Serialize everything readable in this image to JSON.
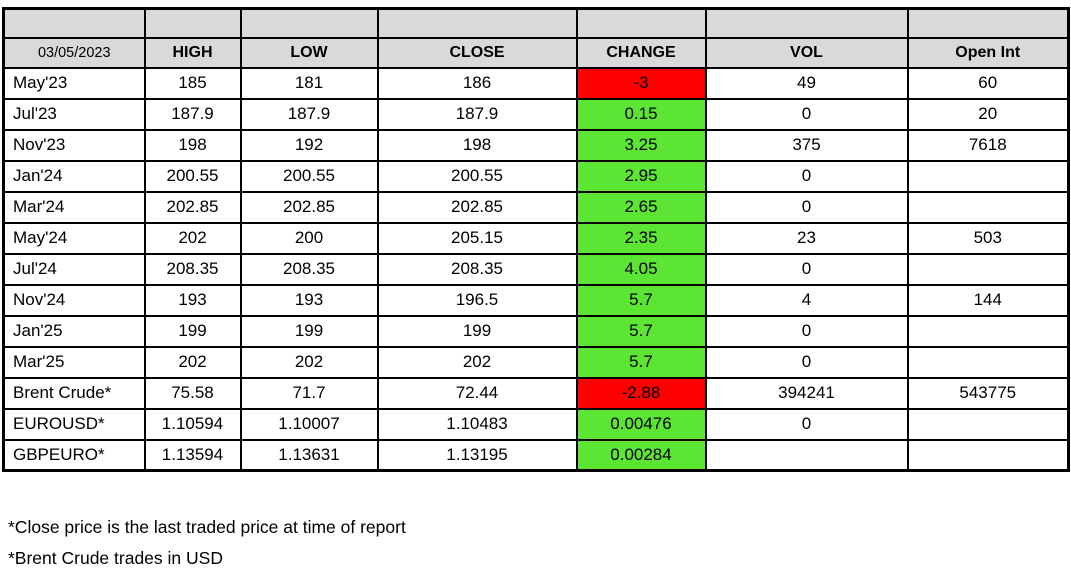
{
  "chart_data": {
    "type": "table",
    "date": "03/05/2023",
    "columns": [
      "HIGH",
      "LOW",
      "CLOSE",
      "CHANGE",
      "VOL",
      "Open Int"
    ],
    "rows": [
      {
        "contract": "May'23",
        "high": "185",
        "low": "181",
        "close": "186",
        "change": "-3",
        "vol": "49",
        "open_int": "60"
      },
      {
        "contract": "Jul'23",
        "high": "187.9",
        "low": "187.9",
        "close": "187.9",
        "change": "0.15",
        "vol": "0",
        "open_int": "20"
      },
      {
        "contract": "Nov'23",
        "high": "198",
        "low": "192",
        "close": "198",
        "change": "3.25",
        "vol": "375",
        "open_int": "7618"
      },
      {
        "contract": "Jan'24",
        "high": "200.55",
        "low": "200.55",
        "close": "200.55",
        "change": "2.95",
        "vol": "0",
        "open_int": ""
      },
      {
        "contract": "Mar'24",
        "high": "202.85",
        "low": "202.85",
        "close": "202.85",
        "change": "2.65",
        "vol": "0",
        "open_int": ""
      },
      {
        "contract": "May'24",
        "high": "202",
        "low": "200",
        "close": "205.15",
        "change": "2.35",
        "vol": "23",
        "open_int": "503"
      },
      {
        "contract": "Jul'24",
        "high": "208.35",
        "low": "208.35",
        "close": "208.35",
        "change": "4.05",
        "vol": "0",
        "open_int": ""
      },
      {
        "contract": "Nov'24",
        "high": "193",
        "low": "193",
        "close": "196.5",
        "change": "5.7",
        "vol": "4",
        "open_int": "144"
      },
      {
        "contract": "Jan'25",
        "high": "199",
        "low": "199",
        "close": "199",
        "change": "5.7",
        "vol": "0",
        "open_int": ""
      },
      {
        "contract": "Mar'25",
        "high": "202",
        "low": "202",
        "close": "202",
        "change": "5.7",
        "vol": "0",
        "open_int": ""
      },
      {
        "contract": "Brent Crude*",
        "high": "75.58",
        "low": "71.7",
        "close": "72.44",
        "change": "-2.88",
        "vol": "394241",
        "open_int": "543775"
      },
      {
        "contract": "EUROUSD*",
        "high": "1.10594",
        "low": "1.10007",
        "close": "1.10483",
        "change": "0.00476",
        "vol": "0",
        "open_int": ""
      },
      {
        "contract": "GBPEURO*",
        "high": "1.13594",
        "low": "1.13631",
        "close": "1.13195",
        "change": "0.00284",
        "vol": "",
        "open_int": ""
      }
    ]
  },
  "footnotes": [
    "*Close price is the last traded price at time of report",
    "*Brent Crude trades in USD"
  ],
  "colors": {
    "header_bg": "#d9d9d9",
    "positive_change_bg": "#5ce633",
    "negative_change_bg": "#fe0000",
    "border": "#000000"
  }
}
